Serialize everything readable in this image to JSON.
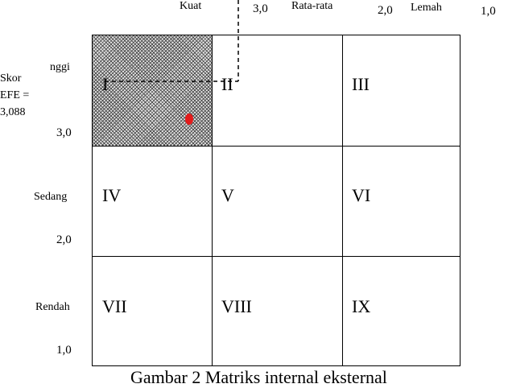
{
  "top_axis": {
    "kuat": "Kuat",
    "val_3": "3,0",
    "rata": "Rata-rata",
    "val_2": "2,0",
    "lemah": "Lemah",
    "val_1": "1,0"
  },
  "side_axis": {
    "skor": "Skor",
    "efe": "EFE =",
    "efe_value": "3,088",
    "tinggi": "nggi",
    "val_3": "3,0",
    "sedang": "Sedang",
    "val_2": "2,0",
    "rendah": "Rendah",
    "val_1": "1,0"
  },
  "cells": [
    "I",
    "II",
    "III",
    "IV",
    "V",
    "VI",
    "VII",
    "VIII",
    "IX"
  ],
  "highlight_cell": "I",
  "marker_color": "#e41b1b",
  "caption": "Gambar 2 Matriks internal eksternal"
}
